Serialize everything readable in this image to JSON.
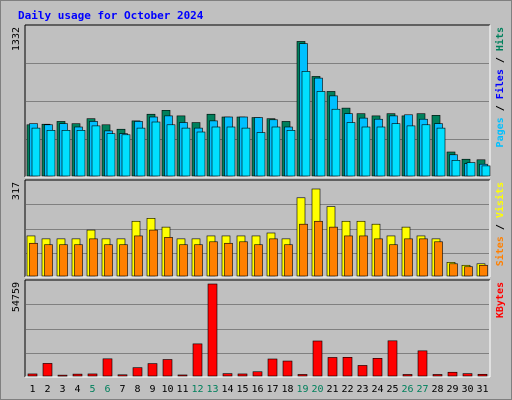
{
  "chart_data": [
    {
      "type": "bar",
      "title": "Daily usage for October 2024",
      "panel": "hits-files-pages",
      "ymax_label": "1332",
      "ylim": [
        0,
        1332
      ],
      "right_label_parts": [
        "Pages",
        "Files",
        "Hits"
      ],
      "series": [
        {
          "name": "Hits",
          "color": "#00805C",
          "values": [
            470,
            475,
            500,
            480,
            525,
            470,
            430,
            505,
            565,
            600,
            550,
            490,
            565,
            540,
            540,
            535,
            525,
            500,
            1220,
            905,
            770,
            620,
            570,
            550,
            570,
            550,
            570,
            555,
            225,
            160,
            155
          ]
        },
        {
          "name": "Files",
          "color": "#00C0FF",
          "values": [
            480,
            470,
            480,
            450,
            500,
            415,
            390,
            500,
            540,
            550,
            490,
            440,
            505,
            540,
            540,
            535,
            515,
            450,
            1200,
            890,
            730,
            570,
            530,
            520,
            550,
            560,
            520,
            480,
            200,
            120,
            115
          ]
        },
        {
          "name": "Pages",
          "color": "#00E0FF",
          "values": [
            440,
            420,
            420,
            420,
            460,
            390,
            380,
            440,
            495,
            470,
            440,
            405,
            450,
            450,
            440,
            400,
            450,
            420,
            950,
            770,
            610,
            490,
            450,
            450,
            480,
            460,
            470,
            440,
            150,
            130,
            100
          ]
        }
      ]
    },
    {
      "type": "bar",
      "panel": "visits-sites",
      "ymax_label": "317",
      "ylim": [
        0,
        317
      ],
      "right_label_parts": [
        "Sites",
        "Visits"
      ],
      "series": [
        {
          "name": "Visits",
          "color": "#FFFF00",
          "values": [
            140,
            130,
            130,
            130,
            160,
            130,
            130,
            190,
            200,
            170,
            130,
            130,
            140,
            140,
            140,
            140,
            150,
            130,
            270,
            300,
            240,
            190,
            190,
            180,
            140,
            170,
            140,
            130,
            50,
            40,
            45
          ]
        },
        {
          "name": "Sites",
          "color": "#FF8000",
          "values": [
            115,
            110,
            110,
            110,
            130,
            110,
            110,
            140,
            160,
            135,
            110,
            110,
            120,
            115,
            120,
            110,
            130,
            110,
            180,
            190,
            170,
            140,
            140,
            130,
            110,
            130,
            130,
            120,
            45,
            35,
            40
          ]
        }
      ]
    },
    {
      "type": "bar",
      "panel": "kbytes",
      "ymax_label": "54759",
      "ylim": [
        0,
        54759
      ],
      "right_label_parts": [
        "KBytes"
      ],
      "series": [
        {
          "name": "KBytes",
          "color": "#FF0000",
          "values": [
            1800,
            8000,
            1100,
            1700,
            1800,
            10700,
            1300,
            5500,
            7900,
            10300,
            1200,
            19500,
            54759,
            2000,
            1800,
            3100,
            10600,
            9400,
            1500,
            21200,
            11500,
            11600,
            6800,
            11000,
            21300,
            1500,
            15400,
            1500,
            2800,
            2000,
            1600
          ]
        }
      ]
    },
    {
      "type": "bar",
      "panel": "x-axis",
      "categories": [
        "1",
        "2",
        "3",
        "4",
        "5",
        "6",
        "7",
        "8",
        "9",
        "10",
        "11",
        "12",
        "13",
        "14",
        "15",
        "16",
        "17",
        "18",
        "19",
        "20",
        "21",
        "22",
        "23",
        "24",
        "25",
        "26",
        "27",
        "28",
        "29",
        "30",
        "31"
      ],
      "weekend_days": [
        "5",
        "6",
        "12",
        "13",
        "19",
        "20",
        "26",
        "27"
      ]
    }
  ],
  "colors": {
    "title": "#0000FF",
    "weekday_label": "#000000",
    "weekend_label": "#00805C",
    "pages_label": "#00C0FF",
    "files_label": "#0000FF",
    "hits_label": "#00805C",
    "sites_label": "#FF8000",
    "visits_label": "#FFFF00",
    "kbytes_label": "#FF0000",
    "panel_bg": "#C0C0C0",
    "grid": "#808080"
  }
}
